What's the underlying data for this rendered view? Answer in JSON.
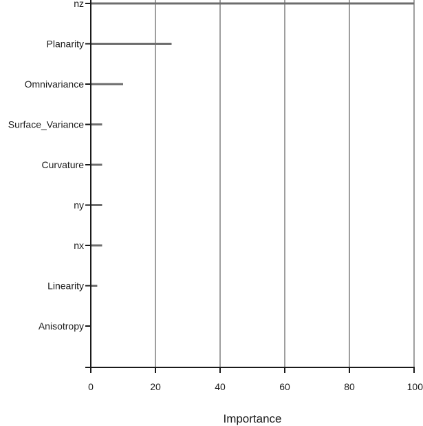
{
  "chart_data": {
    "type": "bar",
    "orientation": "horizontal",
    "categories": [
      "nz",
      "Planarity",
      "Omnivariance",
      "Surface_Variance",
      "Curvature",
      "ny",
      "nx",
      "Linearity",
      "Anisotropy"
    ],
    "values": [
      100,
      25,
      10,
      3.5,
      3.5,
      3.5,
      3.5,
      2,
      0
    ],
    "title": "",
    "xlabel": "Importance",
    "ylabel": "",
    "xlim": [
      0,
      100
    ],
    "xticks": [
      0,
      20,
      40,
      60,
      80,
      100
    ],
    "grid": "vertical",
    "bar_color": "#6d6d6d"
  }
}
